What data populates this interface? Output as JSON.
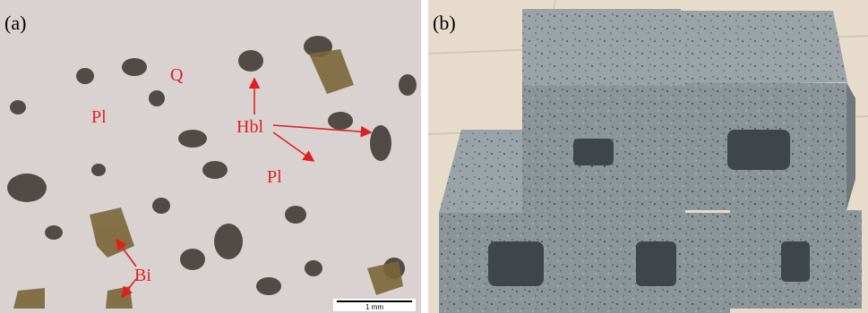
{
  "panels": [
    {
      "label": "(a)",
      "annotations": [
        "Q",
        "Pl",
        "Hbl",
        "Pl",
        "Bi"
      ],
      "scale_bar": "1 mm"
    },
    {
      "label": "(b)"
    }
  ]
}
